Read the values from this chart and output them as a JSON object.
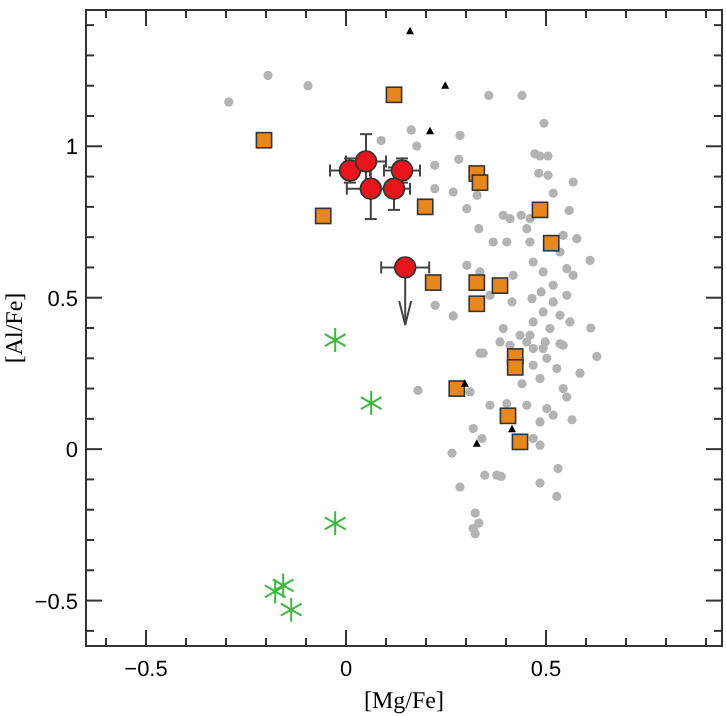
{
  "chart_data": {
    "type": "scatter",
    "xlabel": "[Mg/Fe]",
    "ylabel": "[Al/Fe]",
    "xlim": [
      -0.65,
      0.94
    ],
    "ylim": [
      -0.65,
      1.45
    ],
    "grid": false,
    "xticks": [
      {
        "value": -0.6,
        "label": null
      },
      -0.5,
      {
        "value": -0.4,
        "label": null
      },
      {
        "value": -0.3,
        "label": null
      },
      {
        "value": -0.2,
        "label": null
      },
      {
        "value": -0.1,
        "label": null
      },
      0,
      {
        "value": 0.1,
        "label": null
      },
      {
        "value": 0.2,
        "label": null
      },
      {
        "value": 0.3,
        "label": null
      },
      {
        "value": 0.4,
        "label": null
      },
      0.5,
      {
        "value": 0.6,
        "label": null
      },
      {
        "value": 0.7,
        "label": null
      },
      {
        "value": 0.8,
        "label": null
      },
      {
        "value": 0.9,
        "label": null
      }
    ],
    "yticks": [
      {
        "value": -0.6,
        "label": null
      },
      -0.5,
      {
        "value": -0.4,
        "label": null
      },
      {
        "value": -0.3,
        "label": null
      },
      {
        "value": -0.2,
        "label": null
      },
      {
        "value": -0.1,
        "label": null
      },
      0,
      {
        "value": 0.1,
        "label": null
      },
      {
        "value": 0.2,
        "label": null
      },
      {
        "value": 0.3,
        "label": null
      },
      {
        "value": 0.4,
        "label": null
      },
      0.5,
      {
        "value": 0.6,
        "label": null
      },
      {
        "value": 0.7,
        "label": null
      },
      {
        "value": 0.8,
        "label": null
      },
      {
        "value": 0.9,
        "label": null
      },
      1,
      {
        "value": 1.1,
        "label": null
      },
      {
        "value": 1.2,
        "label": null
      },
      {
        "value": 1.3,
        "label": null
      },
      {
        "value": 1.4,
        "label": null
      }
    ],
    "series": [
      {
        "color": "#b3b3b3",
        "marker": "circle",
        "x": [
          -0.293,
          -0.195,
          -0.095,
          0.357,
          0.44,
          0.495,
          0.163,
          0.088,
          0.177,
          0.285,
          0.472,
          0.485,
          0.505,
          0.282,
          0.222,
          0.222,
          0.482,
          0.505,
          0.568,
          0.268,
          0.328,
          0.302,
          0.518,
          0.558,
          0.332,
          0.393,
          0.41,
          0.438,
          0.46,
          0.368,
          0.402,
          0.46,
          0.543,
          0.577,
          0.452,
          0.535,
          0.468,
          0.61,
          0.302,
          0.335,
          0.418,
          0.493,
          0.552,
          0.568,
          0.518,
          0.488,
          0.552,
          0.465,
          0.518,
          0.223,
          0.268,
          0.415,
          0.36,
          0.493,
          0.535,
          0.468,
          0.51,
          0.56,
          0.612,
          0.46,
          0.498,
          0.535,
          0.393,
          0.435,
          0.41,
          0.343,
          0.385,
          0.468,
          0.627,
          0.452,
          0.493,
          0.543,
          0.335,
          0.468,
          0.502,
          0.527,
          0.585,
          0.18,
          0.31,
          0.44,
          0.485,
          0.543,
          0.552,
          0.36,
          0.402,
          0.452,
          0.502,
          0.518,
          0.565,
          0.485,
          0.318,
          0.34,
          0.468,
          0.485,
          0.265,
          0.53,
          0.347,
          0.377,
          0.388,
          0.285,
          0.485,
          0.527,
          0.323,
          0.332,
          0.318,
          0.323
        ],
        "values": [
          1.146,
          1.234,
          1.2,
          1.168,
          1.168,
          1.076,
          1.054,
          1.019,
          1.001,
          1.036,
          0.975,
          0.968,
          0.968,
          0.957,
          0.937,
          0.86,
          0.911,
          0.904,
          0.882,
          0.849,
          0.838,
          0.794,
          0.845,
          0.788,
          0.728,
          0.772,
          0.761,
          0.772,
          0.761,
          0.684,
          0.684,
          0.684,
          0.706,
          0.695,
          0.728,
          0.651,
          0.618,
          0.623,
          0.607,
          0.585,
          0.574,
          0.585,
          0.596,
          0.574,
          0.541,
          0.519,
          0.508,
          0.497,
          0.486,
          0.475,
          0.44,
          0.486,
          0.508,
          0.453,
          0.442,
          0.42,
          0.398,
          0.42,
          0.4,
          0.376,
          0.354,
          0.348,
          0.398,
          0.376,
          0.343,
          0.317,
          0.354,
          0.332,
          0.306,
          0.354,
          0.332,
          0.343,
          0.317,
          0.277,
          0.3,
          0.266,
          0.251,
          0.194,
          0.189,
          0.216,
          0.233,
          0.2,
          0.172,
          0.145,
          0.15,
          0.145,
          0.134,
          0.112,
          0.097,
          0.09,
          0.068,
          0.035,
          0.035,
          0.013,
          -0.013,
          -0.064,
          -0.086,
          -0.086,
          -0.09,
          -0.125,
          -0.112,
          -0.156,
          -0.211,
          -0.244,
          -0.262,
          -0.279
        ]
      },
      {
        "color": "#e8871e",
        "marker": "square",
        "x": [
          0.12,
          -0.205,
          -0.057,
          0.198,
          0.327,
          0.335,
          0.485,
          0.513,
          0.218,
          0.327,
          0.385,
          0.327,
          0.423,
          0.423,
          0.277,
          0.405,
          0.435
        ],
        "values": [
          1.17,
          1.02,
          0.77,
          0.8,
          0.91,
          0.88,
          0.79,
          0.68,
          0.55,
          0.55,
          0.54,
          0.48,
          0.306,
          0.27,
          0.2,
          0.11,
          0.024
        ]
      },
      {
        "color": "#000000",
        "marker": "triangle",
        "x": [
          0.16,
          0.248,
          0.21,
          0.297,
          0.415,
          0.327
        ],
        "values": [
          1.38,
          1.2,
          1.05,
          0.216,
          0.066,
          0.018
        ]
      },
      {
        "color": "#3cb83c",
        "marker": "cross",
        "x": [
          -0.027,
          0.063,
          -0.027,
          -0.177,
          -0.157,
          -0.137
        ],
        "values": [
          0.36,
          0.152,
          -0.245,
          -0.47,
          -0.45,
          -0.53
        ]
      },
      {
        "color": "#e8141c",
        "marker": "circle",
        "x": [
          0.01,
          0.05,
          0.14,
          0.062,
          0.12,
          0.148
        ],
        "values": [
          0.92,
          0.95,
          0.92,
          0.86,
          0.86,
          0.6
        ],
        "xerrors": [
          0.05,
          0.05,
          0.045,
          0.06,
          0.04,
          0.06
        ],
        "errors": [
          0.04,
          0.09,
          0.04,
          0.1,
          0.07,
          [
            0.41,
            0.6
          ]
        ]
      }
    ]
  }
}
